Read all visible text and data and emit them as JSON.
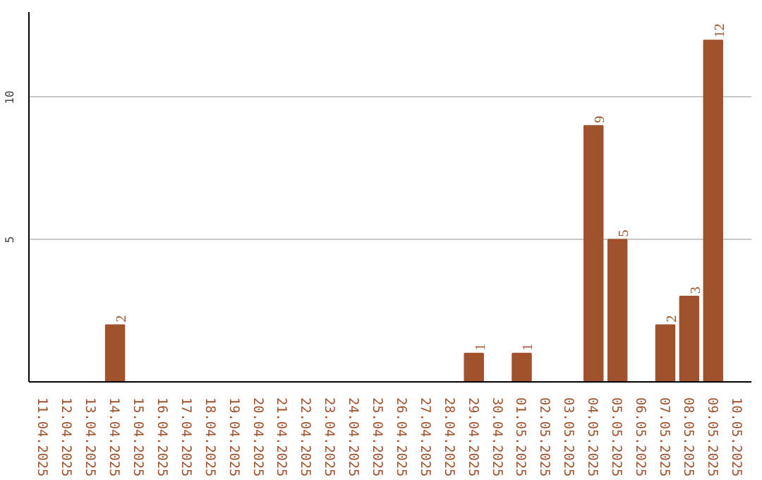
{
  "chart_data": {
    "type": "bar",
    "categories": [
      "11.04.2025",
      "12.04.2025",
      "13.04.2025",
      "14.04.2025",
      "15.04.2025",
      "16.04.2025",
      "17.04.2025",
      "18.04.2025",
      "19.04.2025",
      "20.04.2025",
      "21.04.2025",
      "22.04.2025",
      "23.04.2025",
      "24.04.2025",
      "25.04.2025",
      "26.04.2025",
      "27.04.2025",
      "28.04.2025",
      "29.04.2025",
      "30.04.2025",
      "01.05.2025",
      "02.05.2025",
      "03.05.2025",
      "04.05.2025",
      "05.05.2025",
      "06.05.2025",
      "07.05.2025",
      "08.05.2025",
      "09.05.2025",
      "10.05.2025"
    ],
    "values": [
      0,
      0,
      0,
      2,
      0,
      0,
      0,
      0,
      0,
      0,
      0,
      0,
      0,
      0,
      0,
      0,
      0,
      0,
      1,
      0,
      1,
      0,
      0,
      9,
      5,
      0,
      2,
      3,
      12,
      0
    ],
    "value_labels": [
      null,
      null,
      null,
      "2",
      null,
      null,
      null,
      null,
      null,
      null,
      null,
      null,
      null,
      null,
      null,
      null,
      null,
      null,
      "1",
      null,
      "1",
      null,
      null,
      "9",
      "5",
      null,
      "2",
      "3",
      "12",
      null
    ],
    "color": "#a0522d",
    "ylim": [
      0,
      13
    ],
    "yticks": [
      5,
      10
    ],
    "grid": "y"
  }
}
